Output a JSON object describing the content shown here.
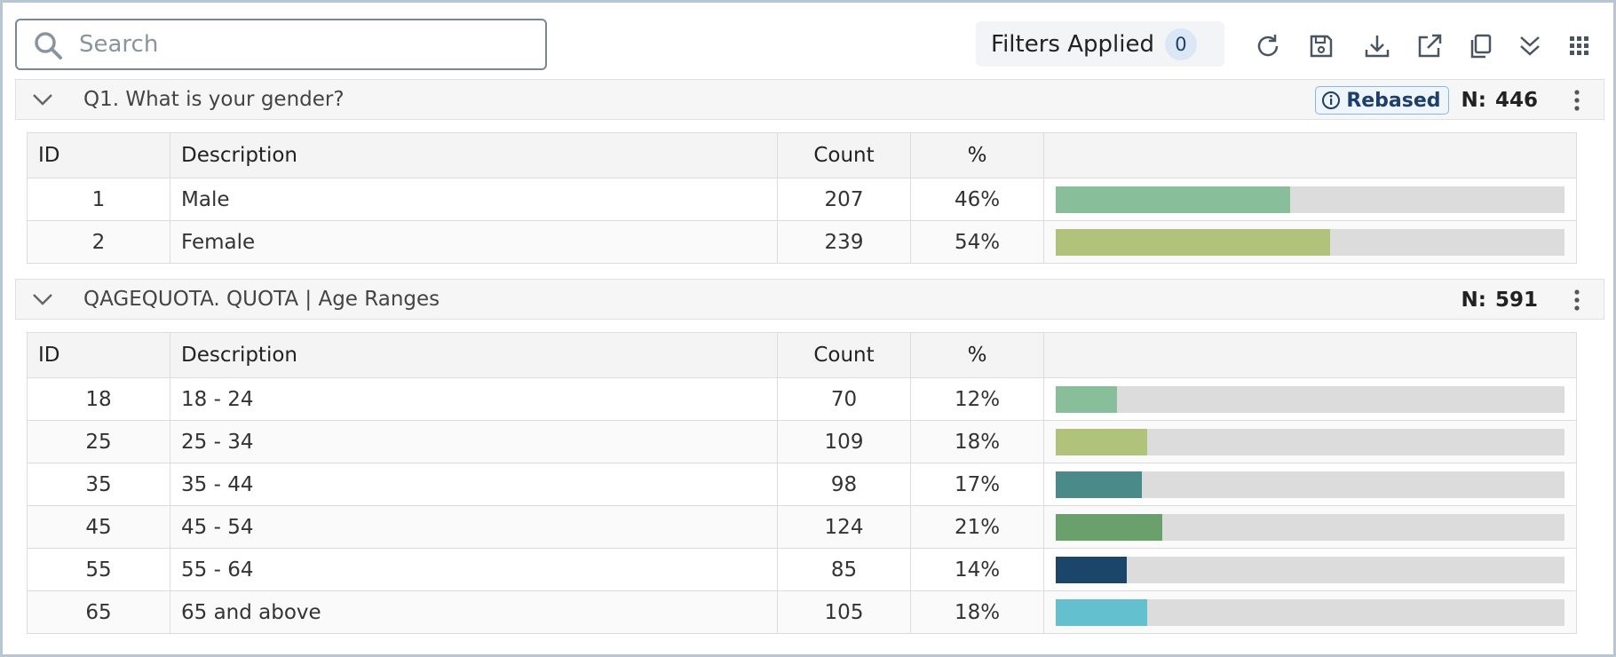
{
  "toolbar": {
    "search_placeholder": "Search",
    "filters_label": "Filters Applied",
    "filters_count": 0
  },
  "columns": [
    "ID",
    "Description",
    "Count",
    "%"
  ],
  "sections": [
    {
      "title": "Q1. What is your gender?",
      "badge": "Rebased",
      "n_label": "N:",
      "n": 446,
      "rows": [
        {
          "id": 1,
          "description": "Male",
          "count": 207,
          "percent": 46,
          "percent_label": "46%",
          "color": "#88bf9a"
        },
        {
          "id": 2,
          "description": "Female",
          "count": 239,
          "percent": 54,
          "percent_label": "54%",
          "color": "#b1c37a"
        }
      ]
    },
    {
      "title": "QAGEQUOTA. QUOTA | Age Ranges",
      "n_label": "N:",
      "n": 591,
      "rows": [
        {
          "id": 18,
          "description": "18 - 24",
          "count": 70,
          "percent": 12,
          "percent_label": "12%",
          "color": "#88bf9a"
        },
        {
          "id": 25,
          "description": "25 - 34",
          "count": 109,
          "percent": 18,
          "percent_label": "18%",
          "color": "#b1c37a"
        },
        {
          "id": 35,
          "description": "35 - 44",
          "count": 98,
          "percent": 17,
          "percent_label": "17%",
          "color": "#4a8a88"
        },
        {
          "id": 45,
          "description": "45 - 54",
          "count": 124,
          "percent": 21,
          "percent_label": "21%",
          "color": "#6aa06b"
        },
        {
          "id": 55,
          "description": "55 - 64",
          "count": 85,
          "percent": 14,
          "percent_label": "14%",
          "color": "#1b4669"
        },
        {
          "id": 65,
          "description": "65 and above",
          "count": 105,
          "percent": 18,
          "percent_label": "18%",
          "color": "#62c0cf"
        }
      ]
    }
  ]
}
